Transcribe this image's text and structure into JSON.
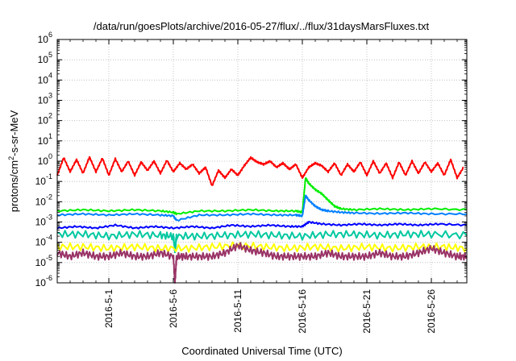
{
  "chart_data": {
    "type": "line",
    "title": "/data/run/goesPlots/archive/2016-05-27/flux/../flux/31daysMarsFluxes.txt",
    "xlabel": "Coordinated Universal Time (UTC)",
    "ylabel": "protons/cm²-s-sr-MeV",
    "x_range": [
      "2016-04-27T00:00",
      "2016-05-28T18:00"
    ],
    "x_ticks": [
      "2016-5-1",
      "2016-5-6",
      "2016-5-11",
      "2016-5-16",
      "2016-5-21",
      "2016-5-26"
    ],
    "y_scale": "log",
    "ylim": [
      1e-06,
      1000000.0
    ],
    "y_ticks": [
      {
        "value": 1e-06,
        "base": "10",
        "exp": "-6"
      },
      {
        "value": 1e-05,
        "base": "10",
        "exp": "-5"
      },
      {
        "value": 0.0001,
        "base": "10",
        "exp": "-4"
      },
      {
        "value": 0.001,
        "base": "10",
        "exp": "-3"
      },
      {
        "value": 0.01,
        "base": "10",
        "exp": "-2"
      },
      {
        "value": 0.1,
        "base": "10",
        "exp": "-1"
      },
      {
        "value": 1.0,
        "base": "10",
        "exp": "0"
      },
      {
        "value": 10.0,
        "base": "10",
        "exp": "1"
      },
      {
        "value": 100.0,
        "base": "10",
        "exp": "2"
      },
      {
        "value": 1000.0,
        "base": "10",
        "exp": "3"
      },
      {
        "value": 10000.0,
        "base": "10",
        "exp": "4"
      },
      {
        "value": 100000.0,
        "base": "10",
        "exp": "5"
      },
      {
        "value": 1000000.0,
        "base": "10",
        "exp": "6"
      }
    ],
    "grid": true,
    "legend": "none",
    "series": [
      {
        "color": "#ff0000",
        "x": [
          "2016-04-27T00:00",
          "2016-04-27T12:00",
          "2016-04-28T00:00",
          "2016-04-28T12:00",
          "2016-04-29T00:00",
          "2016-04-29T12:00",
          "2016-04-30T00:00",
          "2016-04-30T12:00",
          "2016-05-01T00:00",
          "2016-05-01T12:00",
          "2016-05-02T00:00",
          "2016-05-02T12:00",
          "2016-05-03T00:00",
          "2016-05-03T12:00",
          "2016-05-04T00:00",
          "2016-05-04T12:00",
          "2016-05-05T00:00",
          "2016-05-05T12:00",
          "2016-05-06T00:00",
          "2016-05-06T12:00",
          "2016-05-07T00:00",
          "2016-05-07T12:00",
          "2016-05-08T00:00",
          "2016-05-08T12:00",
          "2016-05-09T00:00",
          "2016-05-09T12:00",
          "2016-05-10T00:00",
          "2016-05-10T12:00",
          "2016-05-11T00:00",
          "2016-05-11T12:00",
          "2016-05-12T00:00",
          "2016-05-12T12:00",
          "2016-05-13T00:00",
          "2016-05-13T12:00",
          "2016-05-14T00:00",
          "2016-05-14T12:00",
          "2016-05-15T00:00",
          "2016-05-15T12:00",
          "2016-05-16T00:00",
          "2016-05-16T12:00",
          "2016-05-17T00:00",
          "2016-05-17T12:00",
          "2016-05-18T00:00",
          "2016-05-18T12:00",
          "2016-05-19T00:00",
          "2016-05-19T12:00",
          "2016-05-20T00:00",
          "2016-05-20T12:00",
          "2016-05-21T00:00",
          "2016-05-21T12:00",
          "2016-05-22T00:00",
          "2016-05-22T12:00",
          "2016-05-23T00:00",
          "2016-05-23T12:00",
          "2016-05-24T00:00",
          "2016-05-24T12:00",
          "2016-05-25T00:00",
          "2016-05-25T12:00",
          "2016-05-26T00:00",
          "2016-05-26T12:00",
          "2016-05-27T00:00",
          "2016-05-27T12:00",
          "2016-05-28T00:00",
          "2016-05-28T12:00"
        ],
        "y": [
          0.2,
          1.5,
          0.3,
          1.2,
          0.25,
          1.6,
          0.3,
          1.4,
          0.2,
          1.3,
          0.3,
          1.0,
          0.2,
          0.9,
          0.35,
          1.0,
          0.25,
          1.1,
          0.3,
          0.8,
          0.4,
          0.7,
          0.25,
          0.5,
          0.06,
          0.35,
          0.15,
          0.4,
          0.2,
          0.6,
          1.5,
          0.9,
          0.7,
          1.0,
          0.5,
          0.8,
          0.4,
          0.7,
          0.15,
          0.5,
          0.8,
          0.6,
          0.3,
          0.8,
          0.2,
          0.7,
          0.3,
          0.9,
          0.2,
          1.0,
          0.25,
          0.8,
          0.15,
          0.9,
          0.2,
          1.0,
          0.25,
          0.9,
          0.3,
          0.8,
          0.2,
          1.2,
          0.15,
          0.5
        ]
      },
      {
        "color": "#00ee00",
        "x": [
          "2016-04-27T00:00",
          "2016-04-29T00:00",
          "2016-05-01T00:00",
          "2016-05-03T00:00",
          "2016-05-05T00:00",
          "2016-05-06T00:00",
          "2016-05-06T06:00",
          "2016-05-08T00:00",
          "2016-05-10T00:00",
          "2016-05-12T00:00",
          "2016-05-14T00:00",
          "2016-05-15T12:00",
          "2016-05-16T00:00",
          "2016-05-16T06:00",
          "2016-05-16T12:00",
          "2016-05-17T00:00",
          "2016-05-17T12:00",
          "2016-05-18T00:00",
          "2016-05-18T12:00",
          "2016-05-19T00:00",
          "2016-05-20T00:00",
          "2016-05-22T00:00",
          "2016-05-24T00:00",
          "2016-05-26T00:00",
          "2016-05-28T18:00"
        ],
        "y": [
          0.0035,
          0.004,
          0.0035,
          0.004,
          0.0035,
          0.003,
          0.0025,
          0.0035,
          0.0035,
          0.004,
          0.0035,
          0.0035,
          0.003,
          0.15,
          0.08,
          0.04,
          0.025,
          0.012,
          0.006,
          0.0045,
          0.004,
          0.0045,
          0.004,
          0.0045,
          0.004
        ]
      },
      {
        "color": "#0080ff",
        "x": [
          "2016-04-27T00:00",
          "2016-04-29T00:00",
          "2016-05-01T00:00",
          "2016-05-03T00:00",
          "2016-05-05T00:00",
          "2016-05-06T00:00",
          "2016-05-06T06:00",
          "2016-05-08T00:00",
          "2016-05-10T00:00",
          "2016-05-12T00:00",
          "2016-05-14T00:00",
          "2016-05-15T12:00",
          "2016-05-16T00:00",
          "2016-05-16T06:00",
          "2016-05-16T12:00",
          "2016-05-17T00:00",
          "2016-05-17T12:00",
          "2016-05-18T00:00",
          "2016-05-19T00:00",
          "2016-05-20T00:00",
          "2016-05-22T00:00",
          "2016-05-24T00:00",
          "2016-05-26T00:00",
          "2016-05-28T18:00"
        ],
        "y": [
          0.0022,
          0.0025,
          0.0022,
          0.0025,
          0.0022,
          0.002,
          0.0012,
          0.0022,
          0.0022,
          0.0025,
          0.0022,
          0.0022,
          0.002,
          0.02,
          0.012,
          0.006,
          0.004,
          0.0035,
          0.003,
          0.0028,
          0.0026,
          0.0028,
          0.0025,
          0.0025
        ]
      },
      {
        "color": "#0000ff",
        "x": [
          "2016-04-27T00:00",
          "2016-04-28T12:00",
          "2016-04-30T00:00",
          "2016-05-01T12:00",
          "2016-05-03T00:00",
          "2016-05-04T12:00",
          "2016-05-06T00:00",
          "2016-05-07T12:00",
          "2016-05-09T00:00",
          "2016-05-10T12:00",
          "2016-05-12T00:00",
          "2016-05-13T12:00",
          "2016-05-15T00:00",
          "2016-05-16T00:00",
          "2016-05-16T12:00",
          "2016-05-17T12:00",
          "2016-05-19T00:00",
          "2016-05-20T12:00",
          "2016-05-22T00:00",
          "2016-05-23T12:00",
          "2016-05-25T00:00",
          "2016-05-26T12:00",
          "2016-05-28T18:00"
        ],
        "y": [
          0.0005,
          0.0006,
          0.0005,
          0.0007,
          0.0005,
          0.0006,
          0.0005,
          0.0006,
          0.0005,
          0.0007,
          0.0006,
          0.0007,
          0.0006,
          0.0006,
          0.001,
          0.0008,
          0.0007,
          0.0008,
          0.0007,
          0.0008,
          0.0007,
          0.0008,
          0.0007
        ]
      },
      {
        "color": "#00c8a0",
        "x": [
          "2016-04-27T00:00",
          "2016-04-29T00:00",
          "2016-05-01T00:00",
          "2016-05-03T00:00",
          "2016-05-05T00:00",
          "2016-05-06T00:00",
          "2016-05-06T03:00",
          "2016-05-06T06:00",
          "2016-05-08T00:00",
          "2016-05-10T00:00",
          "2016-05-12T00:00",
          "2016-05-14T00:00",
          "2016-05-16T00:00",
          "2016-05-18T00:00",
          "2016-05-20T00:00",
          "2016-05-22T00:00",
          "2016-05-24T00:00",
          "2016-05-26T00:00",
          "2016-05-28T18:00"
        ],
        "y": [
          0.00025,
          0.00025,
          0.0002,
          0.00025,
          0.00022,
          0.0002,
          4e-05,
          0.0002,
          0.0002,
          0.00022,
          0.00025,
          0.00022,
          0.0002,
          0.00025,
          0.00025,
          0.00022,
          0.00025,
          0.00025,
          0.00022
        ]
      },
      {
        "color": "#ffff00",
        "x": [
          "2016-04-27T00:00",
          "2016-04-29T00:00",
          "2016-05-01T00:00",
          "2016-05-03T00:00",
          "2016-05-05T00:00",
          "2016-05-07T00:00",
          "2016-05-09T00:00",
          "2016-05-11T00:00",
          "2016-05-13T00:00",
          "2016-05-15T00:00",
          "2016-05-17T00:00",
          "2016-05-19T00:00",
          "2016-05-21T00:00",
          "2016-05-23T00:00",
          "2016-05-25T00:00",
          "2016-05-27T00:00",
          "2016-05-28T18:00"
        ],
        "y": [
          6e-05,
          6e-05,
          5e-05,
          6e-05,
          5e-05,
          5e-05,
          6e-05,
          7e-05,
          6e-05,
          5e-05,
          6e-05,
          5e-05,
          6e-05,
          5e-05,
          6e-05,
          6e-05,
          5e-05
        ]
      },
      {
        "color": "#993366",
        "x": [
          "2016-04-27T00:00",
          "2016-04-28T00:00",
          "2016-04-29T00:00",
          "2016-04-30T00:00",
          "2016-05-01T00:00",
          "2016-05-02T00:00",
          "2016-05-03T00:00",
          "2016-05-04T00:00",
          "2016-05-05T00:00",
          "2016-05-06T00:00",
          "2016-05-06T03:00",
          "2016-05-06T06:00",
          "2016-05-07T00:00",
          "2016-05-08T00:00",
          "2016-05-09T00:00",
          "2016-05-10T00:00",
          "2016-05-11T00:00",
          "2016-05-12T00:00",
          "2016-05-13T00:00",
          "2016-05-14T00:00",
          "2016-05-15T00:00",
          "2016-05-16T00:00",
          "2016-05-17T00:00",
          "2016-05-18T00:00",
          "2016-05-19T00:00",
          "2016-05-20T00:00",
          "2016-05-21T00:00",
          "2016-05-22T00:00",
          "2016-05-23T00:00",
          "2016-05-24T00:00",
          "2016-05-25T00:00",
          "2016-05-26T00:00",
          "2016-05-27T00:00",
          "2016-05-28T00:00",
          "2016-05-28T18:00"
        ],
        "y": [
          3e-05,
          2e-05,
          3e-05,
          2e-05,
          2e-05,
          3e-05,
          2e-05,
          2e-05,
          3e-05,
          2e-05,
          1e-06,
          2e-05,
          2e-05,
          2e-05,
          2e-05,
          3e-05,
          7e-05,
          4e-05,
          3e-05,
          2e-05,
          2e-05,
          2e-05,
          2e-05,
          3e-05,
          2e-05,
          2e-05,
          2e-05,
          3e-05,
          2e-05,
          2e-05,
          3e-05,
          5e-05,
          3e-05,
          2e-05,
          2e-05
        ]
      }
    ]
  }
}
